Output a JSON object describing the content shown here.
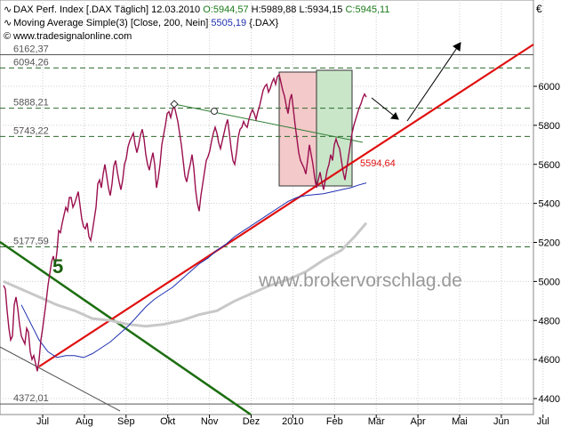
{
  "header": {
    "line1_name": "DAX Perf. Index [.DAX  Täglich]",
    "line1_date": "12.03.2010",
    "line1_open": "O:5944,57",
    "line1_high": "H:5989,88",
    "line1_low": "L:5934,15",
    "line1_close": "C:5945,11",
    "line2_label": "Moving Average Simple(3) [Close, 200, Nein]",
    "line2_value": "5505,19",
    "line2_suffix": "{.DAX}",
    "line3_site": "www.tradesignalonline.com",
    "currency": "€"
  },
  "watermark": "www.brokervorschlag.de",
  "wave_label": "5",
  "colors": {
    "price": "#9a0f4e",
    "ma": "#1f2fb0",
    "ma2": "#c8c8c8",
    "support": "#e01010",
    "downtrend": "#1c6e10",
    "upper_trend": "#2e7d32",
    "levels": "#2e6b2e",
    "box_red": "#f3c9c9",
    "box_green": "#c9e6c9",
    "wave": "#1c5e10"
  },
  "chart_data": {
    "type": "line",
    "ylim": [
      4400,
      6200
    ],
    "yticks": [
      4400,
      4600,
      4800,
      5000,
      5200,
      5400,
      5600,
      5800,
      6000
    ],
    "x_labels": [
      "Jul",
      "Aug",
      "Sep",
      "Okt",
      "Nov",
      "Dez",
      "2010",
      "Feb",
      "Mär",
      "Apr",
      "Mai",
      "Jun",
      "Jul"
    ],
    "levels": [
      {
        "label": "6162,37",
        "value": 6162,
        "style": "solid"
      },
      {
        "label": "6094,26",
        "value": 6094,
        "style": "dashed"
      },
      {
        "label": "5888,21",
        "value": 5888,
        "style": "dashed"
      },
      {
        "label": "5743,22",
        "value": 5743,
        "style": "dashed"
      },
      {
        "label": "5177,59",
        "value": 5177,
        "style": "dashed"
      },
      {
        "label": "4372,01",
        "value": 4372,
        "style": "solid"
      }
    ],
    "support_label": "5594,64",
    "price_series": [
      [
        0,
        4980
      ],
      [
        2,
        4960
      ],
      [
        4,
        4850
      ],
      [
        6,
        4760
      ],
      [
        8,
        4700
      ],
      [
        10,
        4720
      ],
      [
        12,
        4880
      ],
      [
        14,
        4920
      ],
      [
        16,
        4860
      ],
      [
        18,
        4780
      ],
      [
        20,
        4720
      ],
      [
        22,
        4700
      ],
      [
        24,
        4680
      ],
      [
        26,
        4760
      ],
      [
        28,
        4740
      ],
      [
        30,
        4640
      ],
      [
        32,
        4600
      ],
      [
        34,
        4620
      ],
      [
        36,
        4580
      ],
      [
        38,
        4540
      ],
      [
        40,
        4600
      ],
      [
        42,
        4700
      ],
      [
        44,
        4760
      ],
      [
        46,
        4830
      ],
      [
        48,
        4900
      ],
      [
        50,
        4980
      ],
      [
        52,
        5040
      ],
      [
        54,
        5100
      ],
      [
        56,
        5130
      ],
      [
        58,
        5080
      ],
      [
        60,
        5150
      ],
      [
        62,
        5260
      ],
      [
        64,
        5250
      ],
      [
        66,
        5300
      ],
      [
        68,
        5340
      ],
      [
        70,
        5380
      ],
      [
        72,
        5360
      ],
      [
        74,
        5430
      ],
      [
        76,
        5430
      ],
      [
        78,
        5380
      ],
      [
        80,
        5400
      ],
      [
        82,
        5430
      ],
      [
        84,
        5460
      ],
      [
        86,
        5390
      ],
      [
        88,
        5320
      ],
      [
        90,
        5280
      ],
      [
        92,
        5270
      ],
      [
        94,
        5300
      ],
      [
        96,
        5230
      ],
      [
        98,
        5210
      ],
      [
        100,
        5260
      ],
      [
        102,
        5320
      ],
      [
        104,
        5380
      ],
      [
        106,
        5500
      ],
      [
        108,
        5520
      ],
      [
        110,
        5480
      ],
      [
        112,
        5550
      ],
      [
        114,
        5600
      ],
      [
        116,
        5540
      ],
      [
        118,
        5480
      ],
      [
        120,
        5440
      ],
      [
        122,
        5500
      ],
      [
        124,
        5590
      ],
      [
        126,
        5620
      ],
      [
        128,
        5560
      ],
      [
        130,
        5510
      ],
      [
        132,
        5470
      ],
      [
        134,
        5520
      ],
      [
        136,
        5600
      ],
      [
        138,
        5630
      ],
      [
        140,
        5690
      ],
      [
        142,
        5720
      ],
      [
        144,
        5740
      ],
      [
        146,
        5760
      ],
      [
        148,
        5700
      ],
      [
        150,
        5660
      ],
      [
        152,
        5700
      ],
      [
        154,
        5750
      ],
      [
        156,
        5780
      ],
      [
        158,
        5730
      ],
      [
        160,
        5650
      ],
      [
        162,
        5600
      ],
      [
        164,
        5570
      ],
      [
        166,
        5620
      ],
      [
        168,
        5660
      ],
      [
        170,
        5600
      ],
      [
        172,
        5480
      ],
      [
        174,
        5530
      ],
      [
        176,
        5600
      ],
      [
        178,
        5700
      ],
      [
        180,
        5750
      ],
      [
        182,
        5800
      ],
      [
        184,
        5860
      ],
      [
        186,
        5870
      ],
      [
        188,
        5840
      ],
      [
        190,
        5880
      ],
      [
        192,
        5900
      ],
      [
        194,
        5860
      ],
      [
        196,
        5820
      ],
      [
        198,
        5760
      ],
      [
        200,
        5700
      ],
      [
        202,
        5620
      ],
      [
        204,
        5540
      ],
      [
        206,
        5510
      ],
      [
        208,
        5560
      ],
      [
        210,
        5600
      ],
      [
        212,
        5650
      ],
      [
        214,
        5580
      ],
      [
        216,
        5470
      ],
      [
        218,
        5400
      ],
      [
        220,
        5360
      ],
      [
        222,
        5440
      ],
      [
        224,
        5500
      ],
      [
        226,
        5560
      ],
      [
        228,
        5620
      ],
      [
        230,
        5640
      ],
      [
        232,
        5670
      ],
      [
        234,
        5720
      ],
      [
        236,
        5760
      ],
      [
        238,
        5790
      ],
      [
        240,
        5760
      ],
      [
        242,
        5710
      ],
      [
        244,
        5680
      ],
      [
        246,
        5720
      ],
      [
        248,
        5760
      ],
      [
        250,
        5800
      ],
      [
        252,
        5830
      ],
      [
        254,
        5760
      ],
      [
        256,
        5680
      ],
      [
        258,
        5620
      ],
      [
        260,
        5600
      ],
      [
        262,
        5660
      ],
      [
        264,
        5740
      ],
      [
        266,
        5780
      ],
      [
        268,
        5790
      ],
      [
        270,
        5820
      ],
      [
        272,
        5800
      ],
      [
        274,
        5790
      ],
      [
        276,
        5830
      ],
      [
        278,
        5860
      ],
      [
        280,
        5880
      ],
      [
        282,
        5860
      ],
      [
        284,
        5830
      ],
      [
        286,
        5870
      ],
      [
        288,
        5900
      ],
      [
        290,
        5940
      ],
      [
        292,
        5980
      ],
      [
        294,
        6000
      ],
      [
        296,
        6010
      ],
      [
        298,
        5970
      ],
      [
        300,
        5990
      ],
      [
        302,
        6020
      ],
      [
        304,
        6040
      ],
      [
        306,
        6010
      ],
      [
        308,
        6050
      ],
      [
        310,
        6060
      ],
      [
        312,
        6020
      ],
      [
        314,
        5980
      ],
      [
        316,
        5950
      ],
      [
        318,
        5900
      ],
      [
        320,
        5860
      ],
      [
        322,
        5930
      ],
      [
        324,
        5960
      ],
      [
        326,
        5880
      ],
      [
        328,
        5800
      ],
      [
        330,
        5730
      ],
      [
        332,
        5660
      ],
      [
        334,
        5620
      ],
      [
        336,
        5600
      ],
      [
        338,
        5580
      ],
      [
        340,
        5550
      ],
      [
        342,
        5620
      ],
      [
        344,
        5700
      ],
      [
        346,
        5650
      ],
      [
        348,
        5600
      ],
      [
        350,
        5530
      ],
      [
        352,
        5480
      ],
      [
        354,
        5520
      ],
      [
        356,
        5560
      ],
      [
        358,
        5510
      ],
      [
        360,
        5470
      ],
      [
        362,
        5520
      ],
      [
        364,
        5570
      ],
      [
        366,
        5600
      ],
      [
        368,
        5650
      ],
      [
        370,
        5620
      ],
      [
        372,
        5700
      ],
      [
        374,
        5730
      ],
      [
        376,
        5700
      ],
      [
        378,
        5680
      ],
      [
        380,
        5620
      ],
      [
        382,
        5560
      ],
      [
        384,
        5520
      ],
      [
        386,
        5580
      ],
      [
        388,
        5640
      ],
      [
        390,
        5700
      ],
      [
        392,
        5760
      ],
      [
        394,
        5800
      ],
      [
        396,
        5830
      ],
      [
        398,
        5860
      ],
      [
        400,
        5890
      ],
      [
        402,
        5910
      ],
      [
        404,
        5940
      ],
      [
        406,
        5960
      ],
      [
        408,
        5945
      ]
    ],
    "ma_series": [
      [
        20,
        4880
      ],
      [
        40,
        4700
      ],
      [
        50,
        4640
      ],
      [
        60,
        4610
      ],
      [
        70,
        4620
      ],
      [
        80,
        4620
      ],
      [
        90,
        4610
      ],
      [
        100,
        4630
      ],
      [
        110,
        4660
      ],
      [
        120,
        4690
      ],
      [
        130,
        4730
      ],
      [
        140,
        4770
      ],
      [
        150,
        4820
      ],
      [
        160,
        4870
      ],
      [
        170,
        4910
      ],
      [
        180,
        4940
      ],
      [
        190,
        4970
      ],
      [
        200,
        5010
      ],
      [
        210,
        5050
      ],
      [
        220,
        5090
      ],
      [
        230,
        5120
      ],
      [
        240,
        5160
      ],
      [
        250,
        5190
      ],
      [
        260,
        5230
      ],
      [
        270,
        5260
      ],
      [
        280,
        5290
      ],
      [
        290,
        5320
      ],
      [
        300,
        5350
      ],
      [
        310,
        5380
      ],
      [
        320,
        5410
      ],
      [
        330,
        5430
      ],
      [
        340,
        5440
      ],
      [
        350,
        5445
      ],
      [
        360,
        5450
      ],
      [
        370,
        5460
      ],
      [
        380,
        5470
      ],
      [
        390,
        5480
      ],
      [
        400,
        5495
      ],
      [
        408,
        5505
      ]
    ],
    "ma2_series": [
      [
        0,
        5000
      ],
      [
        20,
        4960
      ],
      [
        40,
        4920
      ],
      [
        60,
        4880
      ],
      [
        80,
        4850
      ],
      [
        100,
        4810
      ],
      [
        120,
        4800
      ],
      [
        140,
        4780
      ],
      [
        160,
        4770
      ],
      [
        180,
        4780
      ],
      [
        200,
        4800
      ],
      [
        220,
        4830
      ],
      [
        240,
        4850
      ],
      [
        260,
        4900
      ],
      [
        280,
        4940
      ],
      [
        300,
        4980
      ],
      [
        320,
        5010
      ],
      [
        340,
        5050
      ],
      [
        360,
        5110
      ],
      [
        380,
        5160
      ],
      [
        395,
        5230
      ],
      [
        408,
        5300
      ]
    ]
  }
}
